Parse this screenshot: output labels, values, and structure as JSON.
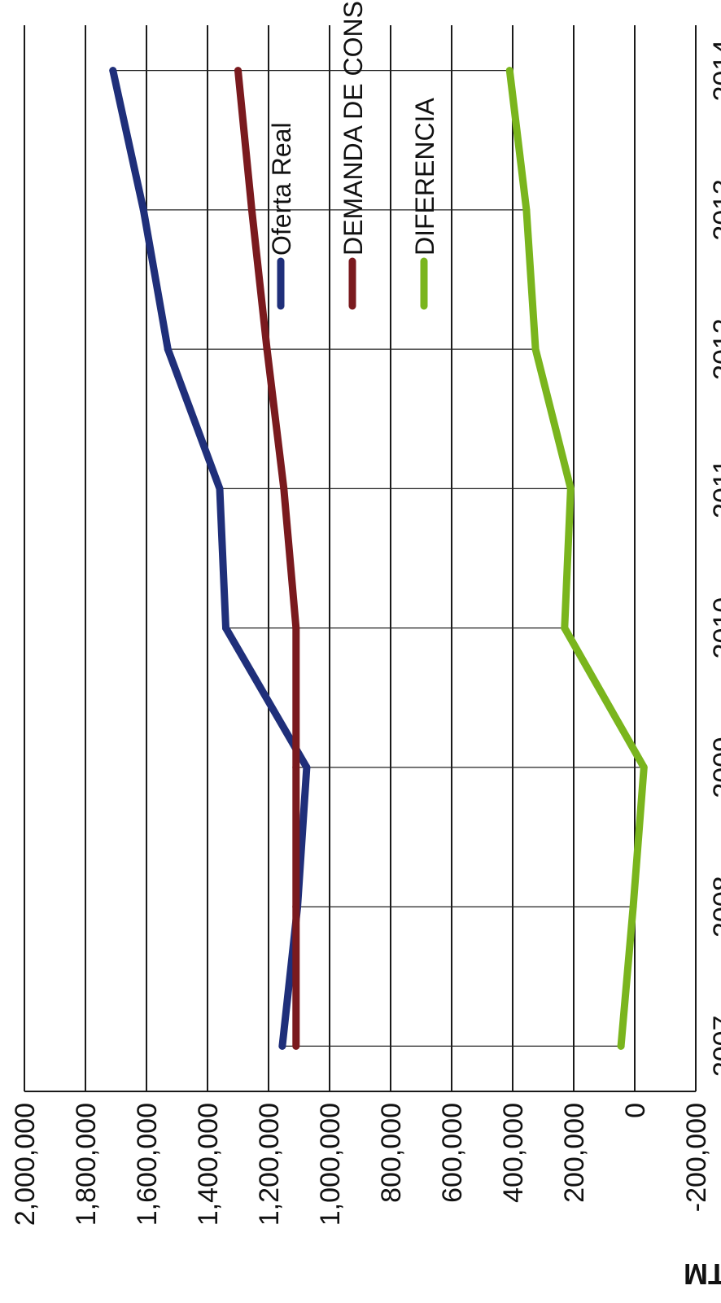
{
  "chart_data": {
    "type": "line",
    "ylabel": "TM",
    "xlabel": "",
    "categories": [
      "2007",
      "2008",
      "2009",
      "2010",
      "2011",
      "2012",
      "2013",
      "2014"
    ],
    "ylim": [
      -200000,
      2000000
    ],
    "yticks": [
      -200000,
      0,
      200000,
      400000,
      600000,
      800000,
      1000000,
      1200000,
      1400000,
      1600000,
      1800000,
      2000000
    ],
    "ytick_labels": [
      "-200,000",
      "0",
      "200,000",
      "400,000",
      "600,000",
      "800,000",
      "1,000,000",
      "1,200,000",
      "1,400,000",
      "1,600,000",
      "1,800,000",
      "2,000,000"
    ],
    "grid": true,
    "legend_position": "right",
    "series": [
      {
        "name": "Oferta Real",
        "color": "#1f2f7a",
        "values": [
          1155000,
          1105000,
          1075000,
          1340000,
          1360000,
          1530000,
          1610000,
          1710000
        ]
      },
      {
        "name": "DEMANDA DE CONSUMO",
        "color": "#7a1a1e",
        "values": [
          1110000,
          1110000,
          1110000,
          1110000,
          1150000,
          1205000,
          1255000,
          1300000
        ]
      },
      {
        "name": "DIFERENCIA",
        "color": "#7ab51d",
        "values": [
          45000,
          5000,
          -30000,
          230000,
          210000,
          325000,
          355000,
          410000
        ]
      }
    ]
  }
}
